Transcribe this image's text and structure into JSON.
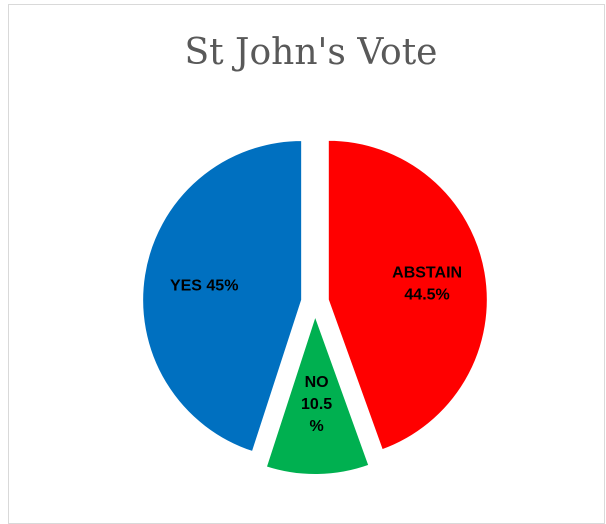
{
  "chart_data": {
    "type": "pie",
    "title": "St John's Vote",
    "slices": [
      {
        "category": "YES",
        "value": 45,
        "color": "#0070C0",
        "label_lines": [
          "YES 45%"
        ]
      },
      {
        "category": "ABSTAIN",
        "value": 44.5,
        "color": "#FF0000",
        "label_lines": [
          "ABSTAIN",
          "44.5%"
        ]
      },
      {
        "category": "NO",
        "value": 10.5,
        "color": "#00B050",
        "label_lines": [
          "NO",
          "10.5",
          "%"
        ]
      }
    ],
    "exploded": true,
    "legend": "none"
  }
}
